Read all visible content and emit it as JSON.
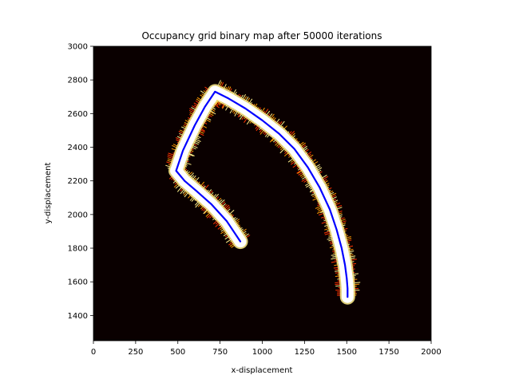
{
  "chart_data": {
    "type": "heatmap",
    "title": "Occupancy grid binary map after 50000 iterations",
    "xlabel": "x-displacement",
    "ylabel": "y-displacement",
    "xlim": [
      0,
      2000
    ],
    "ylim": [
      1250,
      3000
    ],
    "xticks": [
      0,
      250,
      500,
      750,
      1000,
      1250,
      1500,
      1750,
      2000
    ],
    "yticks": [
      1400,
      1600,
      1800,
      2000,
      2200,
      2400,
      2600,
      2800,
      3000
    ],
    "background_color": "#0a0000",
    "occupied_color": "#ffffff",
    "edge_colors": [
      "#ff3300",
      "#ff9900",
      "#ffee88"
    ],
    "path_color": "#0000ff",
    "path": {
      "x": [
        870,
        790,
        700,
        610,
        540,
        490,
        530,
        600,
        660,
        720,
        800,
        900,
        1000,
        1100,
        1190,
        1270,
        1340,
        1400,
        1440,
        1470,
        1490,
        1500,
        1505,
        1505
      ],
      "y": [
        1840,
        1960,
        2060,
        2140,
        2200,
        2260,
        2380,
        2530,
        2640,
        2730,
        2690,
        2630,
        2560,
        2480,
        2390,
        2280,
        2160,
        2030,
        1910,
        1800,
        1700,
        1620,
        1560,
        1510
      ]
    }
  }
}
